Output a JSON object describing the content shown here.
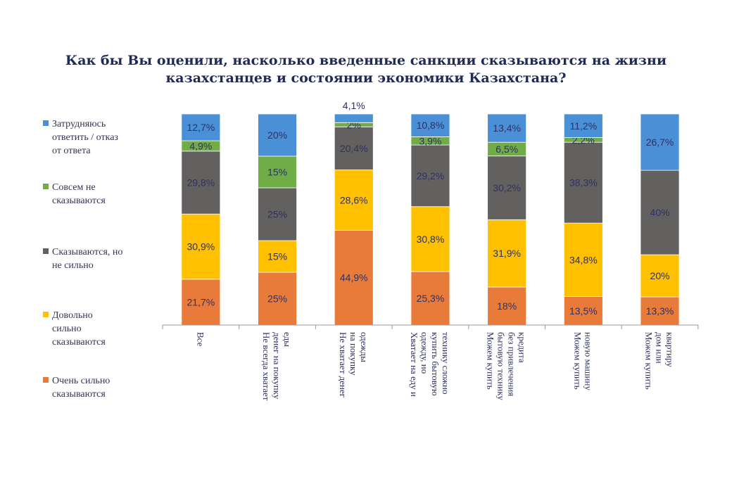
{
  "chart_data": {
    "type": "bar",
    "stacked": true,
    "title": "Как бы Вы оценили, насколько введенные санкции сказываются на жизни казахстанцев и состоянии экономики Казахстана?",
    "title_lines": [
      "Как бы Вы оценили, насколько введенные санкции сказываются на жизни",
      "казахстанцев и состоянии экономики Казахстана?"
    ],
    "categories": [
      [
        "Все"
      ],
      [
        "Не всегда хватает",
        "денег на покупку",
        "еды"
      ],
      [
        "Не хватает денег",
        "на покупку",
        "одежды"
      ],
      [
        "Хватает на еду и",
        "одежду, но",
        "купить бытовую",
        "технику сложно"
      ],
      [
        "Можем купить",
        "бытовую технику",
        "без привлечения",
        "кредита"
      ],
      [
        "Можем купить",
        "новую машину"
      ],
      [
        "Можем купить",
        "дом или",
        "квартиру"
      ]
    ],
    "series": [
      {
        "name": "Очень сильно сказываются",
        "legend_lines": [
          "Очень сильно",
          "сказываются"
        ],
        "color": "#e97b3a",
        "values": [
          21.7,
          25,
          44.9,
          25.3,
          18,
          13.5,
          13.3
        ],
        "labels": [
          "21,7%",
          "25%",
          "44,9%",
          "25,3%",
          "18%",
          "13,5%",
          "13,3%"
        ]
      },
      {
        "name": "Довольно сильно сказываются",
        "legend_lines": [
          "Довольно",
          "сильно",
          "сказываются"
        ],
        "color": "#ffc000",
        "values": [
          30.9,
          15,
          28.6,
          30.8,
          31.9,
          34.8,
          20
        ],
        "labels": [
          "30,9%",
          "15%",
          "28,6%",
          "30,8%",
          "31,9%",
          "34,8%",
          "20%"
        ]
      },
      {
        "name": "Сказываются, но не сильно",
        "legend_lines": [
          "Сказываются, но",
          "не сильно"
        ],
        "color": "#636060",
        "values": [
          29.8,
          25,
          20.4,
          29.2,
          30.2,
          38.3,
          40
        ],
        "labels": [
          "29,8%",
          "25%",
          "20,4%",
          "29,2%",
          "30,2%",
          "38,3%",
          "40%"
        ]
      },
      {
        "name": "Совсем не сказываются",
        "legend_lines": [
          "Совсем не",
          "сказываются"
        ],
        "color": "#70ad47",
        "values": [
          4.9,
          15,
          2,
          3.9,
          6.5,
          2.2,
          0
        ],
        "labels": [
          "4,9%",
          "15%",
          "2%",
          "3,9%",
          "6,5%",
          "2,2%",
          ""
        ]
      },
      {
        "name": "Затрудняюсь ответить / отказ от ответа",
        "legend_lines": [
          "Затрудняюсь",
          "ответить / отказ",
          "от ответа"
        ],
        "color": "#4a90d6",
        "values": [
          12.7,
          20,
          4.1,
          10.8,
          13.4,
          11.2,
          26.7
        ],
        "labels": [
          "12,7%",
          "20%",
          "4,1%",
          "10,8%",
          "13,4%",
          "11,2%",
          "26,7%"
        ]
      }
    ],
    "ylim": [
      0,
      100
    ],
    "xlabel": "",
    "ylabel": "",
    "grid": false,
    "legend_position": "left"
  }
}
